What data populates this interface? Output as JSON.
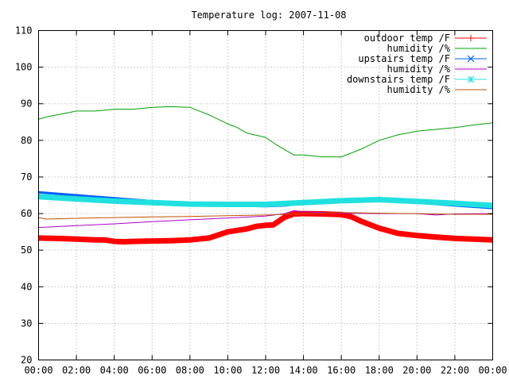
{
  "chart_data": {
    "type": "line",
    "title": "Temperature log: 2007-11-08",
    "xlabel": "",
    "ylabel": "",
    "xlim": [
      0,
      24
    ],
    "ylim": [
      20,
      110
    ],
    "x_ticks": [
      {
        "v": 0,
        "label": "00:00"
      },
      {
        "v": 2,
        "label": "02:00"
      },
      {
        "v": 4,
        "label": "04:00"
      },
      {
        "v": 6,
        "label": "06:00"
      },
      {
        "v": 8,
        "label": "08:00"
      },
      {
        "v": 10,
        "label": "10:00"
      },
      {
        "v": 12,
        "label": "12:00"
      },
      {
        "v": 14,
        "label": "14:00"
      },
      {
        "v": 16,
        "label": "16:00"
      },
      {
        "v": 18,
        "label": "18:00"
      },
      {
        "v": 20,
        "label": "20:00"
      },
      {
        "v": 22,
        "label": "22:00"
      },
      {
        "v": 24,
        "label": "00:00"
      }
    ],
    "y_ticks": [
      20,
      30,
      40,
      50,
      60,
      70,
      80,
      90,
      100,
      110
    ],
    "grid": true,
    "legend_position": "top-right",
    "series": [
      {
        "name": "outdoor temp /F",
        "color": "#ff0000",
        "width": 7,
        "marker": "plus",
        "x": [
          0,
          1,
          2,
          3,
          3.5,
          4,
          4.5,
          5,
          6,
          7,
          8,
          9,
          10,
          11,
          11.5,
          12,
          12.4,
          13,
          13.5,
          14,
          15,
          16,
          16.5,
          17,
          18,
          19,
          20,
          21,
          22,
          23,
          24
        ],
        "y": [
          53.3,
          53.2,
          53.0,
          52.8,
          52.8,
          52.4,
          52.3,
          52.4,
          52.5,
          52.6,
          52.8,
          53.3,
          55.0,
          55.8,
          56.5,
          56.8,
          56.9,
          59.0,
          59.9,
          60.0,
          59.9,
          59.7,
          59.2,
          58.0,
          56.0,
          54.6,
          54.0,
          53.6,
          53.2,
          53.0,
          52.8
        ]
      },
      {
        "name": "humidity /%",
        "color": "#00a000",
        "width": 1,
        "marker": "none",
        "x": [
          0,
          0.5,
          1,
          2,
          3,
          4,
          5,
          6,
          7,
          8,
          9,
          10,
          10.5,
          11,
          12,
          12.5,
          13,
          13.5,
          14,
          15,
          16,
          16.5,
          17,
          18,
          19,
          20,
          21,
          22,
          23,
          24
        ],
        "y": [
          85.8,
          86.5,
          87.0,
          88.0,
          88.0,
          88.5,
          88.5,
          89.0,
          89.2,
          89.0,
          87.0,
          84.5,
          83.5,
          82.0,
          80.8,
          79.0,
          77.5,
          76.0,
          76.0,
          75.5,
          75.5,
          76.5,
          77.5,
          80.0,
          81.5,
          82.5,
          83.0,
          83.5,
          84.2,
          84.8
        ]
      },
      {
        "name": "upstairs temp /F",
        "color": "#0060ff",
        "width": 3,
        "marker": "x",
        "x": [
          0,
          2,
          4,
          6,
          8,
          10,
          12,
          13,
          14,
          16,
          18,
          20,
          22,
          24
        ],
        "y": [
          65.8,
          65.0,
          64.2,
          63.4,
          62.8,
          62.2,
          62.0,
          62.2,
          62.8,
          63.3,
          63.6,
          63.0,
          62.2,
          61.5
        ]
      },
      {
        "name": "humidity /%",
        "color": "#b000c8",
        "width": 1,
        "marker": "none",
        "x": [
          0,
          2,
          4,
          6,
          8,
          10,
          12,
          13,
          13.5,
          14,
          16,
          18,
          20,
          21,
          22,
          24
        ],
        "y": [
          56.2,
          56.7,
          57.2,
          57.8,
          58.3,
          58.8,
          59.3,
          60.0,
          60.8,
          60.5,
          60.1,
          60.0,
          60.0,
          59.6,
          59.9,
          60.0
        ]
      },
      {
        "name": "downstairs temp /F",
        "color": "#20e0e0",
        "width": 7,
        "marker": "star",
        "x": [
          0,
          2,
          4,
          6,
          8,
          10,
          12,
          14,
          16,
          18,
          20,
          22,
          24
        ],
        "y": [
          64.6,
          64.0,
          63.4,
          63.0,
          62.6,
          62.5,
          62.5,
          63.0,
          63.5,
          63.8,
          63.3,
          62.8,
          62.2
        ]
      },
      {
        "name": "humidity /%",
        "color": "#c05000",
        "width": 1,
        "marker": "none",
        "x": [
          0,
          0.4,
          2,
          4,
          6,
          8,
          10,
          12,
          14,
          16,
          18,
          20,
          22,
          24
        ],
        "y": [
          58.9,
          58.5,
          58.7,
          58.9,
          59.1,
          59.2,
          59.4,
          59.6,
          60.0,
          60.3,
          60.1,
          60.0,
          59.8,
          59.8
        ]
      }
    ]
  }
}
